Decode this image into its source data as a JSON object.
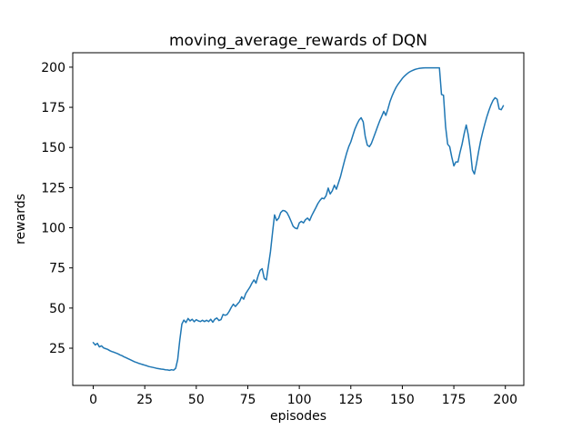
{
  "figure": {
    "background": "#ffffff"
  },
  "chart_data": {
    "type": "line",
    "title": "moving_average_rewards of DQN",
    "xlabel": "episodes",
    "ylabel": "rewards",
    "grid": false,
    "legend": "none",
    "line_color": "#1f77b4",
    "line_width": 1.5,
    "spine_color": "#000000",
    "xlim": [
      -9.95,
      208.95
    ],
    "ylim": [
      1.8,
      209.0
    ],
    "x_ticks": [
      0,
      25,
      50,
      75,
      100,
      125,
      150,
      175,
      200
    ],
    "y_ticks": [
      25,
      50,
      75,
      100,
      125,
      150,
      175,
      200
    ],
    "series": [
      {
        "name": "moving_average_rewards",
        "x_start": 0,
        "x_step": 1,
        "values": [
          28.5,
          27,
          28,
          25.8,
          26.5,
          25.2,
          24.7,
          24.3,
          23.5,
          22.9,
          22.5,
          22,
          21.5,
          20.8,
          20.3,
          19.6,
          19,
          18.4,
          17.8,
          17.2,
          16.6,
          16.1,
          15.6,
          15.2,
          14.8,
          14.4,
          14,
          13.6,
          13.3,
          13,
          12.7,
          12.4,
          12.2,
          12,
          11.8,
          11.6,
          11.5,
          11.2,
          11.6,
          11.3,
          12.5,
          18,
          30,
          40,
          42.5,
          41,
          43.5,
          42,
          43,
          41.5,
          42.8,
          42,
          41.6,
          42.4,
          41.6,
          42.4,
          41.6,
          43,
          41.2,
          43,
          43.8,
          42.2,
          42.8,
          46,
          45.5,
          46,
          48,
          50.5,
          52.4,
          51,
          52.5,
          54,
          57,
          55.5,
          59,
          61,
          63,
          65.5,
          67.5,
          65.5,
          70,
          73.5,
          74.5,
          68.5,
          67.5,
          76,
          85,
          97,
          108,
          104.5,
          106,
          109.5,
          110.8,
          110.5,
          109.5,
          107,
          104,
          101,
          99.8,
          99.4,
          103,
          104,
          103,
          105,
          106,
          104.5,
          107.5,
          110,
          112.5,
          115,
          117,
          118.5,
          118,
          120,
          124.7,
          121,
          123,
          126.5,
          124,
          128,
          132,
          137,
          142,
          146.5,
          150.5,
          153.5,
          157.5,
          161.5,
          164.5,
          167,
          168.5,
          166,
          157,
          151.5,
          150.5,
          152.5,
          156,
          159.5,
          163,
          166.5,
          169.5,
          172.5,
          170,
          174,
          178.5,
          182,
          185,
          187.5,
          189.5,
          191.3,
          193,
          194.4,
          195.6,
          196.6,
          197.4,
          198,
          198.5,
          198.9,
          199.2,
          199.4,
          199.5,
          199.6,
          199.6,
          199.6,
          199.6,
          199.6,
          199.6,
          199.6,
          199.6,
          183,
          182.5,
          163,
          152,
          150.5,
          144,
          138.5,
          141,
          141,
          147,
          152,
          158.5,
          164,
          158,
          148.5,
          136,
          133.5,
          140,
          147.5,
          154,
          159.5,
          164.5,
          169,
          173,
          176.5,
          179.2,
          181,
          180,
          174,
          173.5,
          176
        ]
      }
    ]
  }
}
